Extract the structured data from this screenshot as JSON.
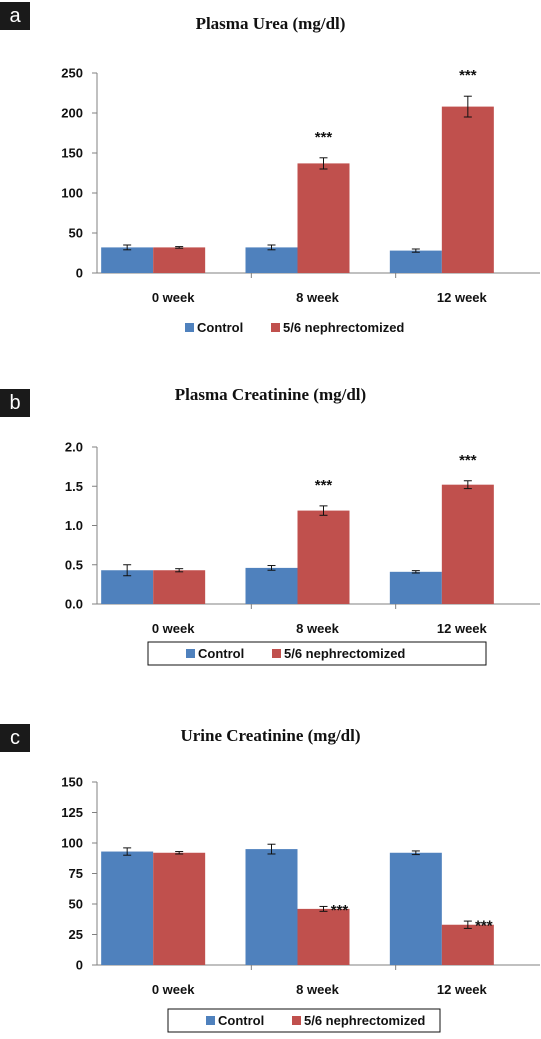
{
  "colors": {
    "control": "#4f81bd",
    "nephrectomized": "#c0504d",
    "axis": "#808080",
    "errorbar": "#111111"
  },
  "chart_data": [
    {
      "id": "a",
      "type": "bar",
      "panel_label": "a",
      "title": "Plasma Urea (mg/dl)",
      "categories": [
        "0 week",
        "8 week",
        "12 week"
      ],
      "series": [
        {
          "name": "Control",
          "values": [
            32,
            32,
            28
          ],
          "errors": [
            3,
            3,
            2
          ]
        },
        {
          "name": "5/6 nephrectomized",
          "values": [
            32,
            137,
            208
          ],
          "errors": [
            1,
            7,
            13
          ]
        }
      ],
      "significance": [
        [
          "",
          ""
        ],
        [
          "",
          "***"
        ],
        [
          "",
          "***"
        ]
      ],
      "ylim": [
        0,
        250
      ],
      "yticks": [
        "0",
        "50",
        "100",
        "150",
        "200",
        "250"
      ],
      "ytick_values": [
        0,
        50,
        100,
        150,
        200,
        250
      ],
      "legend_box": false,
      "legend_position": "bottom"
    },
    {
      "id": "b",
      "type": "bar",
      "panel_label": "b",
      "title": "Plasma Creatinine (mg/dl)",
      "categories": [
        "0 week",
        "8 week",
        "12 week"
      ],
      "series": [
        {
          "name": "Control",
          "values": [
            0.43,
            0.46,
            0.41
          ],
          "errors": [
            0.07,
            0.03,
            0.015
          ]
        },
        {
          "name": "5/6 nephrectomized",
          "values": [
            0.43,
            1.19,
            1.52
          ],
          "errors": [
            0.02,
            0.06,
            0.05
          ]
        }
      ],
      "significance": [
        [
          "",
          ""
        ],
        [
          "",
          "***"
        ],
        [
          "",
          "***"
        ]
      ],
      "ylim": [
        0,
        2.0
      ],
      "yticks": [
        "0.0",
        "0.5",
        "1.0",
        "1.5",
        "2.0"
      ],
      "ytick_values": [
        0,
        0.5,
        1.0,
        1.5,
        2.0
      ],
      "legend_box": true,
      "legend_position": "bottom"
    },
    {
      "id": "c",
      "type": "bar",
      "panel_label": "c",
      "title": "Urine Creatinine (mg/dl)",
      "categories": [
        "0 week",
        "8 week",
        "12 week"
      ],
      "series": [
        {
          "name": "Control",
          "values": [
            93,
            95,
            92
          ],
          "errors": [
            3,
            4,
            1.5
          ]
        },
        {
          "name": "5/6 nephrectomized",
          "values": [
            92,
            46,
            33
          ],
          "errors": [
            1,
            2,
            3
          ]
        }
      ],
      "significance": [
        [
          "",
          ""
        ],
        [
          "",
          "***"
        ],
        [
          "",
          "***"
        ]
      ],
      "ylim": [
        0,
        150
      ],
      "yticks": [
        "0",
        "25",
        "50",
        "75",
        "100",
        "125",
        "150"
      ],
      "ytick_values": [
        0,
        25,
        50,
        75,
        100,
        125,
        150
      ],
      "legend_box": true,
      "legend_position": "bottom"
    }
  ]
}
